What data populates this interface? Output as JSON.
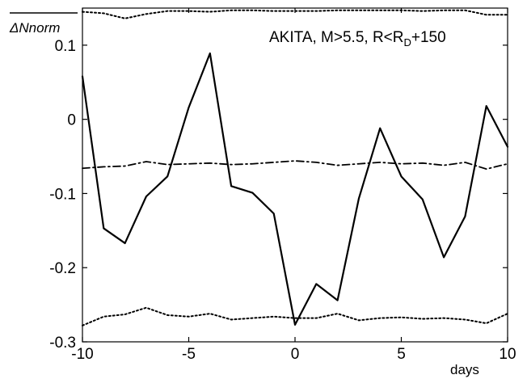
{
  "chart_data": {
    "type": "line",
    "title": "",
    "annotation": {
      "prefix": "AKITA,  M>5.5, R<R",
      "subscript": "D",
      "suffix": "+150"
    },
    "ylabel": {
      "symbol": "Δ",
      "text": "Nnorm",
      "overline": true
    },
    "xlabel": "days",
    "xlim": [
      -10,
      10
    ],
    "ylim": [
      -0.3,
      0.15
    ],
    "xticks": [
      -10,
      -5,
      0,
      5,
      10
    ],
    "xtick_labels": [
      "-10",
      "-5",
      "0",
      "5",
      "10"
    ],
    "yticks": [
      0.1,
      0,
      -0.1,
      -0.2,
      -0.3
    ],
    "ytick_labels": [
      "0.1",
      "0",
      "-0.1",
      "-0.2",
      "-0.3"
    ],
    "grid": false,
    "series": [
      {
        "style": "solid",
        "color": "#000000",
        "x": [
          -10,
          -9,
          -8,
          -7,
          -6,
          -5,
          -4,
          -3,
          -2,
          -1,
          0,
          1,
          2,
          3,
          4,
          5,
          6,
          7,
          8,
          9,
          10
        ],
        "y": [
          0.058,
          -0.147,
          -0.167,
          -0.104,
          -0.077,
          0.016,
          0.089,
          -0.09,
          -0.099,
          -0.127,
          -0.277,
          -0.222,
          -0.244,
          -0.107,
          -0.012,
          -0.077,
          -0.108,
          -0.186,
          -0.131,
          0.018,
          -0.037
        ]
      },
      {
        "style": "dashdot",
        "color": "#000000",
        "x": [
          -10,
          -9,
          -8,
          -7,
          -6,
          -5,
          -4,
          -3,
          -2,
          -1,
          0,
          1,
          2,
          3,
          4,
          5,
          6,
          7,
          8,
          9,
          10
        ],
        "y": [
          -0.066,
          -0.064,
          -0.063,
          -0.057,
          -0.061,
          -0.06,
          -0.059,
          -0.061,
          -0.06,
          -0.058,
          -0.056,
          -0.058,
          -0.062,
          -0.06,
          -0.058,
          -0.06,
          -0.059,
          -0.062,
          -0.058,
          -0.067,
          -0.06
        ]
      },
      {
        "style": "dotted",
        "color": "#000000",
        "x": [
          -10,
          -9,
          -8,
          -7,
          -6,
          -5,
          -4,
          -3,
          -2,
          -1,
          0,
          1,
          2,
          3,
          4,
          5,
          6,
          7,
          8,
          9,
          10
        ],
        "y": [
          0.145,
          0.143,
          0.136,
          0.142,
          0.146,
          0.146,
          0.145,
          0.147,
          0.147,
          0.146,
          0.146,
          0.146,
          0.147,
          0.147,
          0.147,
          0.147,
          0.146,
          0.147,
          0.147,
          0.141,
          0.141
        ]
      },
      {
        "style": "dotted",
        "color": "#000000",
        "x": [
          -10,
          -9,
          -8,
          -7,
          -6,
          -5,
          -4,
          -3,
          -2,
          -1,
          0,
          1,
          2,
          3,
          4,
          5,
          6,
          7,
          8,
          9,
          10
        ],
        "y": [
          -0.278,
          -0.266,
          -0.263,
          -0.254,
          -0.264,
          -0.266,
          -0.262,
          -0.27,
          -0.268,
          -0.266,
          -0.268,
          -0.268,
          -0.262,
          -0.271,
          -0.268,
          -0.267,
          -0.269,
          -0.268,
          -0.27,
          -0.275,
          -0.262
        ]
      }
    ]
  }
}
